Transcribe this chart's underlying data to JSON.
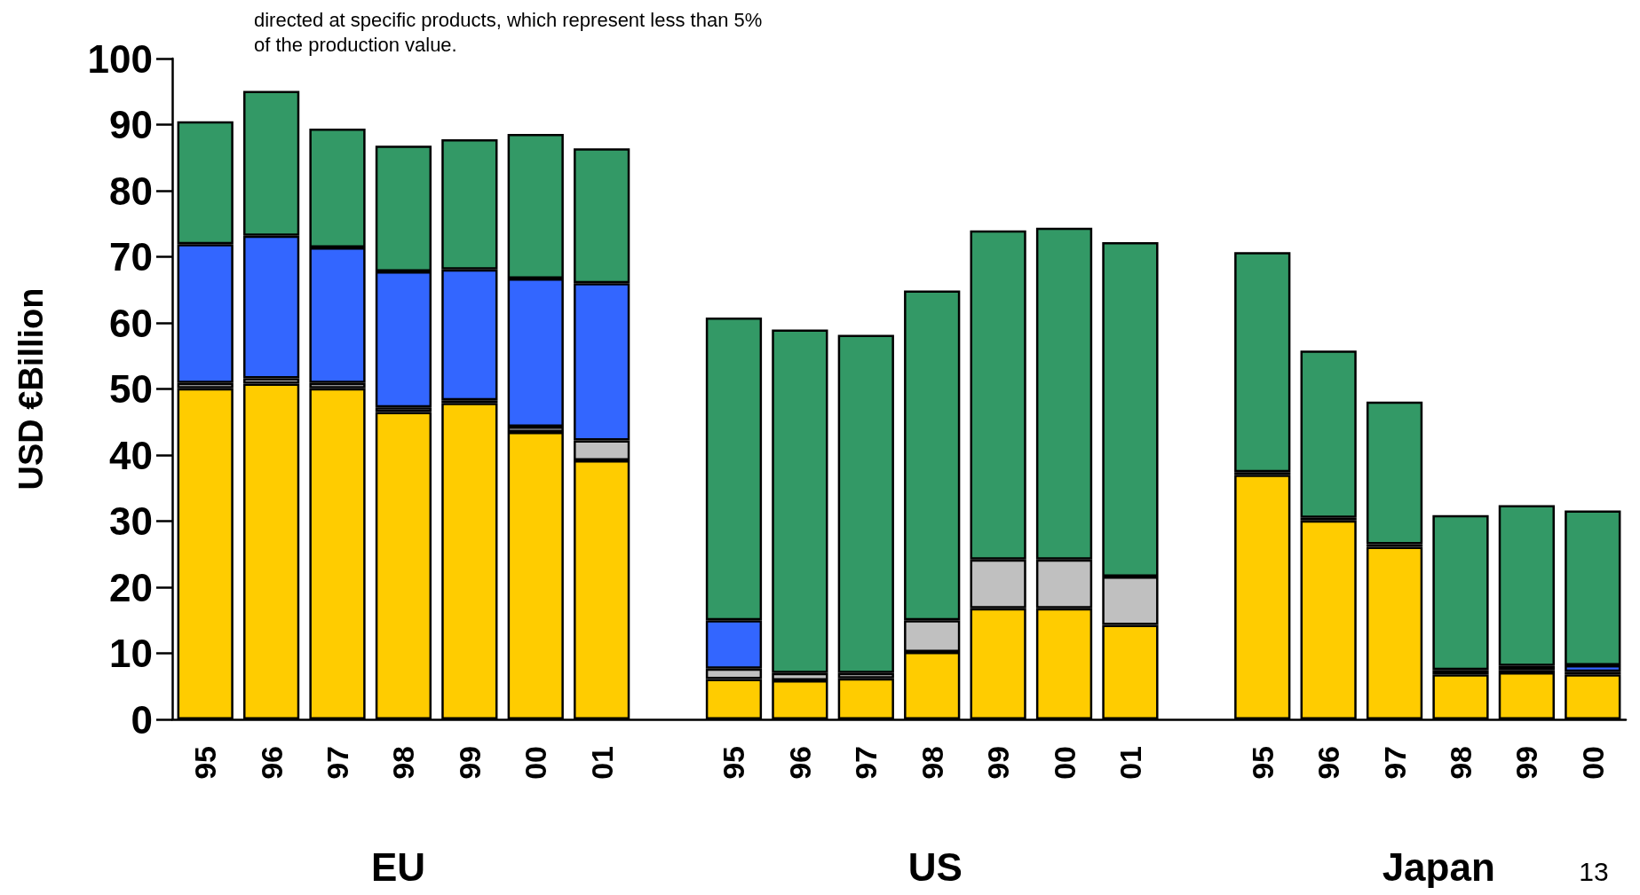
{
  "chart_data": {
    "type": "bar",
    "stacked": true,
    "ylabel": "USD €Billion",
    "categories": [
      "95",
      "96",
      "97",
      "98",
      "99",
      "00",
      "01",
      null,
      "95",
      "96",
      "97",
      "98",
      "99",
      "00",
      "01",
      null,
      "95",
      "96",
      "97",
      "98",
      "99",
      "00"
    ],
    "series": [
      {
        "color": "#ffcc00",
        "values": [
          50.1,
          50.8,
          50.1,
          46.5,
          47.9,
          43.5,
          39.2,
          null,
          6.1,
          5.9,
          6.2,
          10.2,
          16.8,
          16.8,
          14.3,
          null,
          37.0,
          30.1,
          26.1,
          6.8,
          7.1,
          6.8
        ]
      },
      {
        "color": "#c0c0c0",
        "values": [
          0.8,
          0.8,
          0.8,
          0.7,
          0.4,
          0.8,
          3.0,
          null,
          1.6,
          1.1,
          0.8,
          4.8,
          7.4,
          7.4,
          7.3,
          null,
          0.4,
          0.4,
          0.4,
          0.7,
          0.4,
          0.4
        ]
      },
      {
        "color": "#3366ff",
        "values": [
          21.0,
          21.6,
          20.5,
          20.6,
          19.8,
          22.4,
          23.8,
          null,
          7.3,
          null,
          null,
          null,
          null,
          null,
          null,
          null,
          null,
          null,
          null,
          null,
          0.6,
          1.0
        ]
      },
      {
        "color": "#339966",
        "values": [
          18.6,
          21.9,
          18.0,
          19.0,
          19.7,
          21.9,
          20.4,
          null,
          45.8,
          52.0,
          51.2,
          49.9,
          49.8,
          50.2,
          50.6,
          null,
          33.3,
          25.3,
          21.6,
          23.4,
          24.3,
          23.4
        ]
      }
    ],
    "ylim": [
      0,
      100
    ],
    "yticks": [
      0,
      10,
      20,
      30,
      40,
      50,
      60,
      70,
      80,
      90,
      100
    ],
    "grid": false,
    "annotations": [
      "directed at specific products, which represent less than 5%\nof the production value.",
      "EU",
      "US",
      "Japan",
      "13"
    ]
  }
}
